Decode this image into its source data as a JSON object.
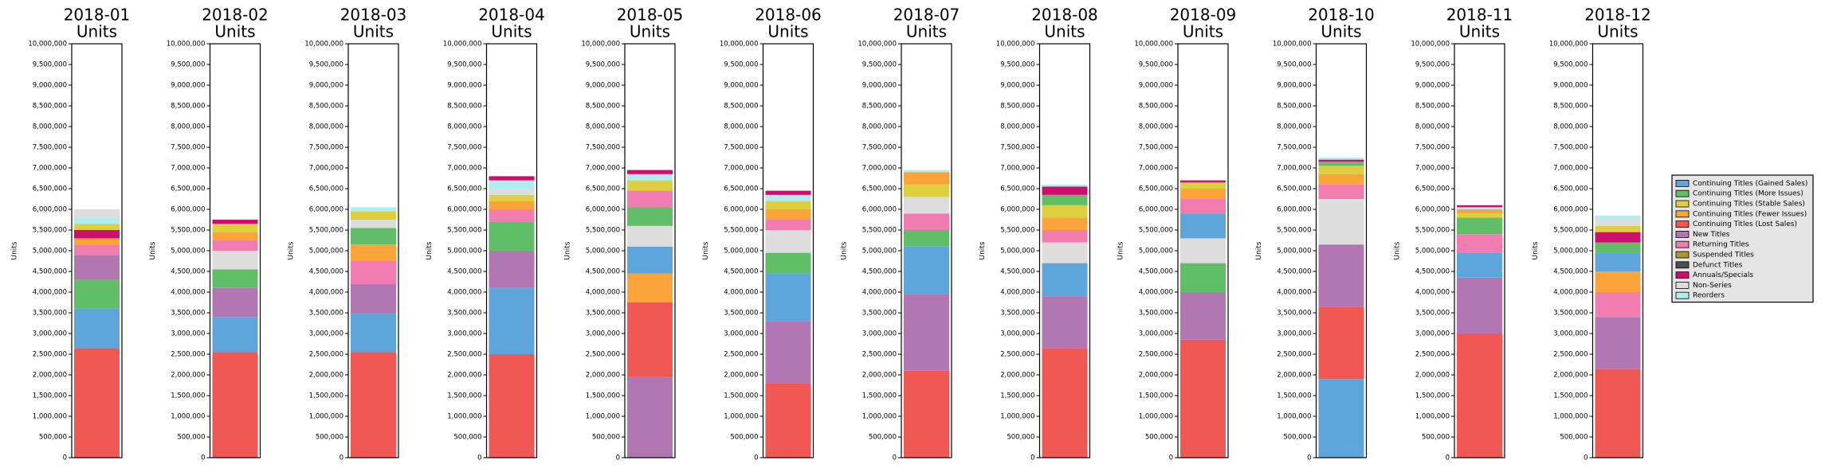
{
  "chart_data": {
    "type": "stacked-bar-panels",
    "ylim": [
      0,
      10000000
    ],
    "yticks": [
      {
        "value": 0,
        "label": "0"
      },
      {
        "value": 500000,
        "label": "500,000"
      },
      {
        "value": 1000000,
        "label": "1,000,000"
      },
      {
        "value": 1500000,
        "label": "1,500,000"
      },
      {
        "value": 2000000,
        "label": "2,000,000"
      },
      {
        "value": 2500000,
        "label": "2,500,000"
      },
      {
        "value": 3000000,
        "label": "3,000,000"
      },
      {
        "value": 3500000,
        "label": "3,500,000"
      },
      {
        "value": 4000000,
        "label": "4,000,000"
      },
      {
        "value": 4500000,
        "label": "4,500,000"
      },
      {
        "value": 5000000,
        "label": "5,000,000"
      },
      {
        "value": 5500000,
        "label": "5,500,000"
      },
      {
        "value": 6000000,
        "label": "6,000,000"
      },
      {
        "value": 6500000,
        "label": "6,500,000"
      },
      {
        "value": 7000000,
        "label": "7,000,000"
      },
      {
        "value": 7500000,
        "label": "7,500,000"
      },
      {
        "value": 8000000,
        "label": "8,000,000"
      },
      {
        "value": 8500000,
        "label": "8,500,000"
      },
      {
        "value": 9000000,
        "label": "9,000,000"
      },
      {
        "value": 9500000,
        "label": "9,500,000"
      },
      {
        "value": 10000000,
        "label": "10,000,000"
      }
    ],
    "legend": "right",
    "series": [
      {
        "name": "Continuing Titles (Gained Sales)",
        "color": "#5da5da",
        "values": [
          950000,
          850000,
          950000,
          1600000,
          650000,
          1150000,
          1150000,
          800000,
          600000,
          1900000,
          600000,
          450000
        ]
      },
      {
        "name": "Continuing Titles (More Issues)",
        "color": "#60bd68",
        "values": [
          700000,
          450000,
          400000,
          700000,
          450000,
          500000,
          400000,
          250000,
          700000,
          100000,
          400000,
          250000
        ]
      },
      {
        "name": "Continuing Titles (Stable Sales)",
        "color": "#decf3f",
        "values": [
          150000,
          200000,
          200000,
          150000,
          250000,
          200000,
          300000,
          300000,
          150000,
          200000,
          100000,
          150000
        ]
      },
      {
        "name": "Continuing Titles (Fewer Issues)",
        "color": "#faa43a",
        "values": [
          150000,
          200000,
          400000,
          200000,
          700000,
          250000,
          300000,
          300000,
          250000,
          250000,
          100000,
          500000
        ]
      },
      {
        "name": "Continuing Titles (Lost Sales)",
        "color": "#f15854",
        "values": [
          2650000,
          2550000,
          2550000,
          2500000,
          1800000,
          1800000,
          2100000,
          2650000,
          2850000,
          1750000,
          3000000,
          2150000
        ]
      },
      {
        "name": "New Titles",
        "color": "#b276b2",
        "values": [
          600000,
          700000,
          700000,
          900000,
          1950000,
          1500000,
          1850000,
          1250000,
          1150000,
          1500000,
          1350000,
          1250000
        ]
      },
      {
        "name": "Returning Titles",
        "color": "#f17cb0",
        "values": [
          250000,
          250000,
          550000,
          300000,
          400000,
          250000,
          400000,
          300000,
          350000,
          350000,
          450000,
          600000
        ]
      },
      {
        "name": "Suspended Titles",
        "color": "#b2912f",
        "values": [
          null,
          null,
          null,
          null,
          null,
          null,
          null,
          null,
          null,
          null,
          null,
          null
        ]
      },
      {
        "name": "Defunct Titles",
        "color": "#4d4d4d",
        "values": [
          null,
          null,
          null,
          null,
          null,
          null,
          null,
          null,
          null,
          null,
          null,
          null
        ]
      },
      {
        "name": "Annuals/Specials",
        "color": "#cc0f6a",
        "values": [
          200000,
          100000,
          null,
          100000,
          100000,
          100000,
          null,
          200000,
          50000,
          50000,
          50000,
          250000
        ]
      },
      {
        "name": "Non-Series",
        "color": "#dddddd",
        "values": [
          200000,
          450000,
          200000,
          150000,
          500000,
          550000,
          400000,
          500000,
          600000,
          1100000,
          null,
          150000
        ]
      },
      {
        "name": "Reorders",
        "color": "#aeeeee",
        "values": [
          150000,
          null,
          100000,
          200000,
          150000,
          150000,
          50000,
          50000,
          null,
          50000,
          50000,
          100000
        ]
      }
    ],
    "panels": [
      {
        "title": "2018-01",
        "subtitle": "Units",
        "ylabel": "Units",
        "stack_order": [
          4,
          0,
          1,
          5,
          6,
          3,
          9,
          2,
          11,
          10
        ]
      },
      {
        "title": "2018-02",
        "subtitle": "Units",
        "ylabel": "Units",
        "stack_order": [
          4,
          0,
          5,
          1,
          10,
          6,
          3,
          2,
          9
        ]
      },
      {
        "title": "2018-03",
        "subtitle": "Units",
        "ylabel": "Units",
        "stack_order": [
          4,
          0,
          5,
          6,
          3,
          1,
          10,
          2,
          11
        ]
      },
      {
        "title": "2018-04",
        "subtitle": "Units",
        "ylabel": "Units",
        "stack_order": [
          4,
          0,
          5,
          1,
          6,
          3,
          2,
          10,
          11,
          9
        ]
      },
      {
        "title": "2018-05",
        "subtitle": "Units",
        "ylabel": "Units",
        "stack_order": [
          5,
          4,
          3,
          0,
          10,
          1,
          6,
          2,
          11,
          9
        ]
      },
      {
        "title": "2018-06",
        "subtitle": "Units",
        "ylabel": "Units",
        "stack_order": [
          4,
          5,
          0,
          1,
          10,
          6,
          3,
          2,
          11,
          9
        ]
      },
      {
        "title": "2018-07",
        "subtitle": "Units",
        "ylabel": "Units",
        "stack_order": [
          4,
          5,
          0,
          1,
          6,
          10,
          2,
          3,
          11
        ]
      },
      {
        "title": "2018-08",
        "subtitle": "Units",
        "ylabel": "Units",
        "stack_order": [
          4,
          5,
          0,
          10,
          6,
          3,
          2,
          1,
          9,
          11
        ]
      },
      {
        "title": "2018-09",
        "subtitle": "Units",
        "ylabel": "Units",
        "stack_order": [
          4,
          5,
          1,
          10,
          0,
          6,
          3,
          2,
          9
        ]
      },
      {
        "title": "2018-10",
        "subtitle": "Units",
        "ylabel": "Units",
        "stack_order": [
          0,
          4,
          5,
          10,
          6,
          3,
          2,
          1,
          9,
          11
        ]
      },
      {
        "title": "2018-11",
        "subtitle": "Units",
        "ylabel": "Units",
        "stack_order": [
          4,
          5,
          0,
          6,
          1,
          2,
          3,
          11,
          9
        ]
      },
      {
        "title": "2018-12",
        "subtitle": "Units",
        "ylabel": "Units",
        "stack_order": [
          4,
          5,
          6,
          3,
          0,
          1,
          9,
          2,
          10,
          11
        ]
      }
    ]
  }
}
